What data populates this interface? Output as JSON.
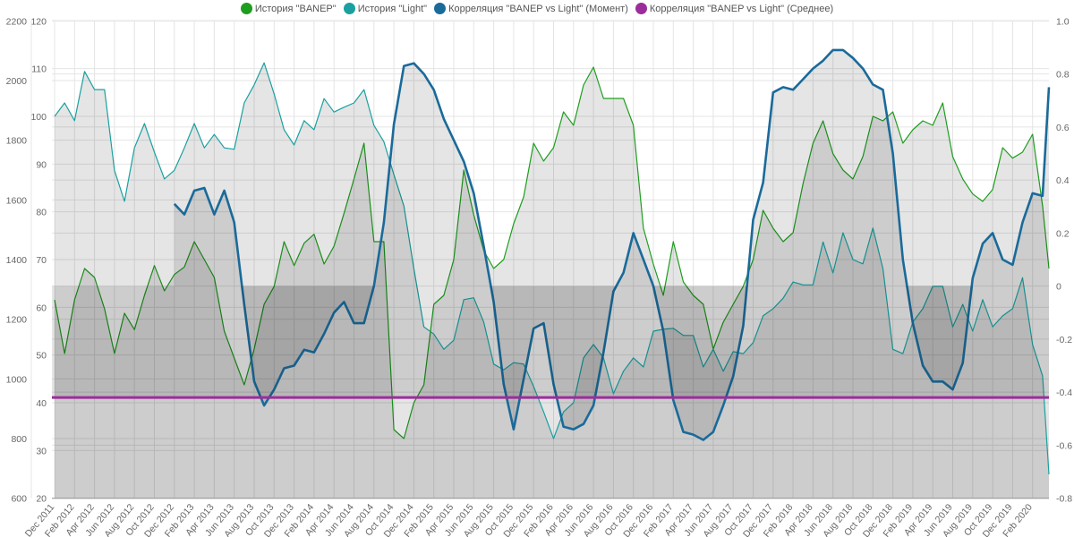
{
  "legend": [
    {
      "label": "История \"BANEP\"",
      "color": "#1e9e1e"
    },
    {
      "label": "История \"Light\"",
      "color": "#1aa0a0"
    },
    {
      "label": "Корреляция \"BANEP vs Light\" (Момент)",
      "color": "#1a6a9a"
    },
    {
      "label": "Корреляция \"BANEP vs Light\" (Среднее)",
      "color": "#9b2d9b"
    }
  ],
  "chart_data": {
    "type": "line",
    "y_axes": {
      "banep": {
        "position": "left-outer",
        "range": [
          600,
          2200
        ],
        "ticks": [
          "2200",
          "2000",
          "1800",
          "1600",
          "1400",
          "1200",
          "1000",
          "800",
          "600"
        ]
      },
      "light": {
        "position": "left-inner",
        "range": [
          20,
          120
        ],
        "ticks": [
          "120",
          "110",
          "100",
          "90",
          "80",
          "70",
          "60",
          "50",
          "40",
          "30",
          "20"
        ]
      },
      "correlation": {
        "position": "right",
        "range": [
          -0.8,
          1.0
        ],
        "ticks": [
          "1.0",
          "0.8",
          "0.6",
          "0.4",
          "0.2",
          "0",
          "-0.2",
          "-0.4",
          "-0.6",
          "-0.8"
        ]
      }
    },
    "x_tick_labels": [
      "Dec 2011",
      "Feb 2012",
      "Apr 2012",
      "Jun 2012",
      "Aug 2012",
      "Oct 2012",
      "Dec 2012",
      "Feb 2013",
      "Apr 2013",
      "Jun 2013",
      "Aug 2013",
      "Oct 2013",
      "Dec 2013",
      "Feb 2014",
      "Apr 2014",
      "Jun 2014",
      "Aug 2014",
      "Oct 2014",
      "Dec 2014",
      "Feb 2015",
      "Apr 2015",
      "Jun 2015",
      "Aug 2015",
      "Oct 2015",
      "Dec 2015",
      "Feb 2016",
      "Apr 2016",
      "Jun 2016",
      "Aug 2016",
      "Oct 2016",
      "Dec 2016",
      "Feb 2017",
      "Apr 2017",
      "Jun 2017",
      "Aug 2017",
      "Oct 2017",
      "Dec 2017",
      "Feb 2018",
      "Apr 2018",
      "Jun 2018",
      "Aug 2018",
      "Oct 2018",
      "Dec 2018",
      "Feb 2019",
      "Apr 2019",
      "Jun 2019",
      "Aug 2019",
      "Oct 2019",
      "Dec 2019",
      "Feb 2020"
    ],
    "grid": true,
    "legend_position": "top",
    "dates": [
      "2011-12",
      "2012-01",
      "2012-02",
      "2012-03",
      "2012-04",
      "2012-05",
      "2012-06",
      "2012-07",
      "2012-08",
      "2012-09",
      "2012-10",
      "2012-11",
      "2012-12",
      "2013-01",
      "2013-02",
      "2013-03",
      "2013-04",
      "2013-05",
      "2013-06",
      "2013-07",
      "2013-08",
      "2013-09",
      "2013-10",
      "2013-11",
      "2013-12",
      "2014-01",
      "2014-02",
      "2014-03",
      "2014-04",
      "2014-05",
      "2014-06",
      "2014-07",
      "2014-08",
      "2014-09",
      "2014-10",
      "2014-11",
      "2014-12",
      "2015-01",
      "2015-02",
      "2015-03",
      "2015-04",
      "2015-05",
      "2015-06",
      "2015-07",
      "2015-08",
      "2015-09",
      "2015-10",
      "2015-11",
      "2015-12",
      "2016-01",
      "2016-02",
      "2016-03",
      "2016-04",
      "2016-05",
      "2016-06",
      "2016-07",
      "2016-08",
      "2016-09",
      "2016-10",
      "2016-11",
      "2016-12",
      "2017-01",
      "2017-02",
      "2017-03",
      "2017-04",
      "2017-05",
      "2017-06",
      "2017-07",
      "2017-08",
      "2017-09",
      "2017-10",
      "2017-11",
      "2017-12",
      "2018-01",
      "2018-02",
      "2018-03",
      "2018-04",
      "2018-05",
      "2018-06",
      "2018-07",
      "2018-08",
      "2018-09",
      "2018-10",
      "2018-11",
      "2018-12",
      "2019-01",
      "2019-02",
      "2019-03",
      "2019-04",
      "2019-05",
      "2019-06",
      "2019-07",
      "2019-08",
      "2019-09",
      "2019-10",
      "2019-11",
      "2019-12",
      "2020-01",
      "2020-02",
      "2020-03",
      "2020-04"
    ],
    "series": [
      {
        "name": "История \"BANEP\"",
        "axis": "banep",
        "color": "#1e9e1e",
        "values": [
          1265,
          1085,
          1265,
          1370,
          1340,
          1235,
          1085,
          1220,
          1165,
          1280,
          1380,
          1295,
          1350,
          1375,
          1460,
          1400,
          1340,
          1160,
          1070,
          980,
          1100,
          1250,
          1310,
          1460,
          1380,
          1455,
          1485,
          1385,
          1445,
          1555,
          1670,
          1790,
          1460,
          1460,
          830,
          800,
          920,
          980,
          1250,
          1280,
          1400,
          1700,
          1550,
          1430,
          1370,
          1400,
          1520,
          1610,
          1790,
          1730,
          1775,
          1895,
          1850,
          1985,
          2045,
          1940,
          1940,
          1940,
          1850,
          1505,
          1385,
          1280,
          1460,
          1325,
          1280,
          1250,
          1100,
          1190,
          1250,
          1310,
          1400,
          1565,
          1505,
          1460,
          1490,
          1655,
          1790,
          1865,
          1755,
          1700,
          1670,
          1745,
          1880,
          1865,
          1895,
          1790,
          1835,
          1865,
          1850,
          1925,
          1745,
          1670,
          1620,
          1595,
          1635,
          1775,
          1740,
          1760,
          1820,
          1580,
          1370
        ]
      },
      {
        "name": "История \"Light\"",
        "axis": "light",
        "color": "#1aa0a0",
        "values": [
          100.0,
          102.8,
          99.1,
          109.4,
          105.6,
          105.6,
          88.7,
          82.2,
          93.4,
          98.5,
          92.5,
          86.9,
          88.7,
          93.4,
          98.5,
          93.4,
          96.2,
          93.4,
          93.1,
          102.8,
          106.6,
          111.2,
          104.7,
          97.2,
          94.0,
          99.1,
          97.2,
          103.7,
          100.9,
          101.9,
          102.8,
          105.6,
          98.1,
          94.7,
          87.8,
          81.2,
          68.1,
          55.9,
          54.4,
          51.2,
          53.1,
          61.6,
          62.0,
          56.9,
          48.1,
          46.9,
          48.4,
          48.1,
          43.4,
          38.1,
          32.5,
          38.1,
          40.0,
          49.4,
          52.2,
          49.4,
          41.9,
          46.6,
          49.4,
          47.5,
          55.0,
          55.4,
          55.6,
          54.1,
          54.1,
          47.5,
          51.2,
          46.6,
          50.7,
          50.3,
          52.6,
          58.2,
          59.7,
          61.9,
          65.3,
          64.7,
          64.7,
          73.7,
          67.2,
          75.6,
          70.0,
          69.1,
          76.6,
          68.1,
          51.2,
          50.3,
          56.9,
          59.7,
          64.4,
          64.4,
          55.9,
          60.6,
          55.0,
          61.6,
          55.9,
          58.2,
          59.7,
          66.2,
          52.2,
          45.6,
          25.0
        ]
      },
      {
        "name": "Корреляция \"BANEP vs Light\" (Момент)",
        "axis": "correlation",
        "color": "#1a6a9a",
        "values": [
          null,
          null,
          null,
          null,
          null,
          null,
          null,
          null,
          null,
          null,
          null,
          null,
          0.31,
          0.27,
          0.36,
          0.37,
          0.27,
          0.36,
          0.24,
          -0.07,
          -0.36,
          -0.45,
          -0.39,
          -0.31,
          -0.3,
          -0.24,
          -0.25,
          -0.18,
          -0.1,
          -0.06,
          -0.14,
          -0.14,
          0.0,
          0.24,
          0.61,
          0.83,
          0.84,
          0.8,
          0.74,
          0.63,
          0.55,
          0.47,
          0.35,
          0.15,
          -0.06,
          -0.37,
          -0.54,
          -0.35,
          -0.16,
          -0.14,
          -0.37,
          -0.53,
          -0.54,
          -0.52,
          -0.45,
          -0.25,
          -0.02,
          0.05,
          0.2,
          0.1,
          0.0,
          -0.17,
          -0.43,
          -0.55,
          -0.56,
          -0.58,
          -0.55,
          -0.45,
          -0.34,
          -0.15,
          0.25,
          0.39,
          0.73,
          0.75,
          0.74,
          0.78,
          0.82,
          0.85,
          0.89,
          0.89,
          0.86,
          0.82,
          0.76,
          0.74,
          0.5,
          0.1,
          -0.14,
          -0.3,
          -0.36,
          -0.36,
          -0.39,
          -0.29,
          0.03,
          0.16,
          0.2,
          0.1,
          0.08,
          0.24,
          0.35,
          0.34,
          0.75
        ]
      },
      {
        "name": "Корреляция \"BANEP vs Light\" (Среднее)",
        "axis": "correlation",
        "color": "#9b2d9b",
        "constant": -0.42
      }
    ]
  }
}
